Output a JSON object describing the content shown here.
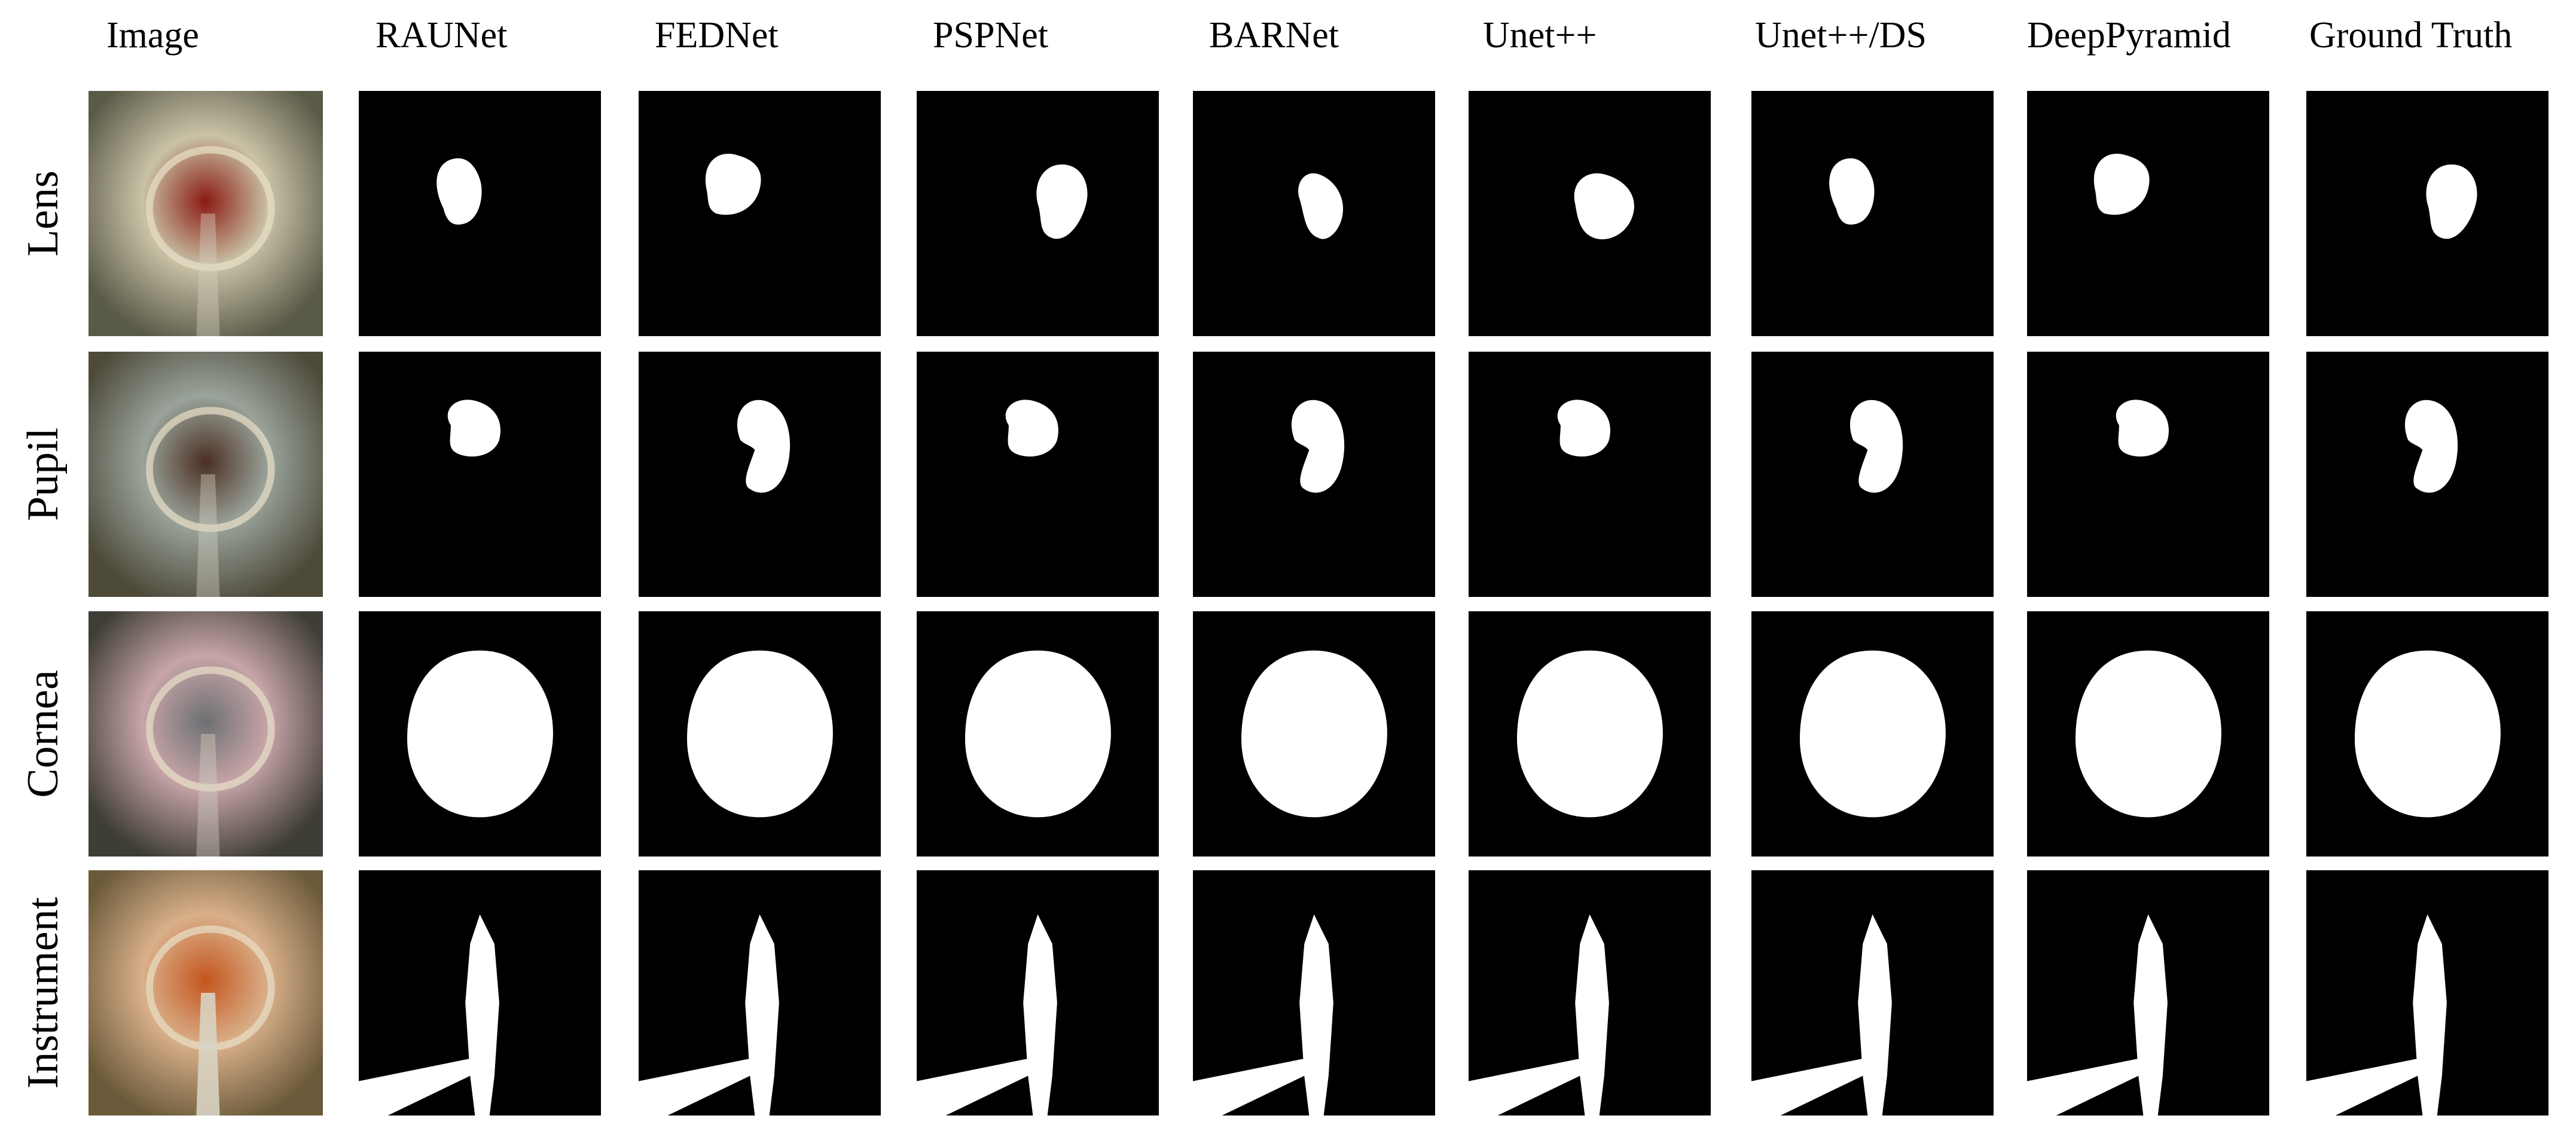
{
  "columns": [
    "Image",
    "RAUNet",
    "FEDNet",
    "PSPNet",
    "BARNet",
    "Unet++",
    "Unet++/DS",
    "DeepPyramid",
    "Ground Truth"
  ],
  "rows": [
    "Lens",
    "Pupil",
    "Cornea",
    "Instrument"
  ],
  "colors": {
    "background": "#ffffff",
    "mask_background": "#000000",
    "mask_foreground": "#ffffff"
  }
}
